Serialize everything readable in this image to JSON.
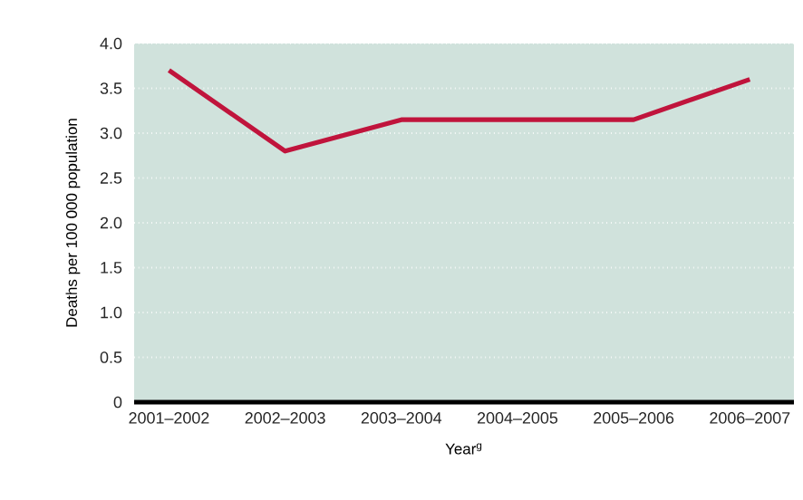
{
  "chart_data": {
    "type": "line",
    "xlabel": "Year$^{g}$",
    "ylabel": "Deaths per 100 000 population",
    "categories": [
      "2001–2002",
      "2002–2003",
      "2003–2004",
      "2004–2005",
      "2005–2006",
      "2006–2007"
    ],
    "series": [
      {
        "color": "#c0143c",
        "values": [
          3.7,
          2.8,
          3.15,
          3.15,
          3.15,
          3.6
        ]
      }
    ],
    "ylim": [
      0,
      4
    ],
    "yticks": [
      0,
      0.5,
      {
        "value": 1,
        "label": "1.0"
      },
      1.5,
      {
        "value": 2,
        "label": "2.0"
      },
      2.5,
      {
        "value": 3,
        "label": "3.0"
      },
      3.5,
      {
        "value": 4,
        "label": "4.0"
      }
    ],
    "grid": "y",
    "marker": "none",
    "line_style": "solid"
  }
}
